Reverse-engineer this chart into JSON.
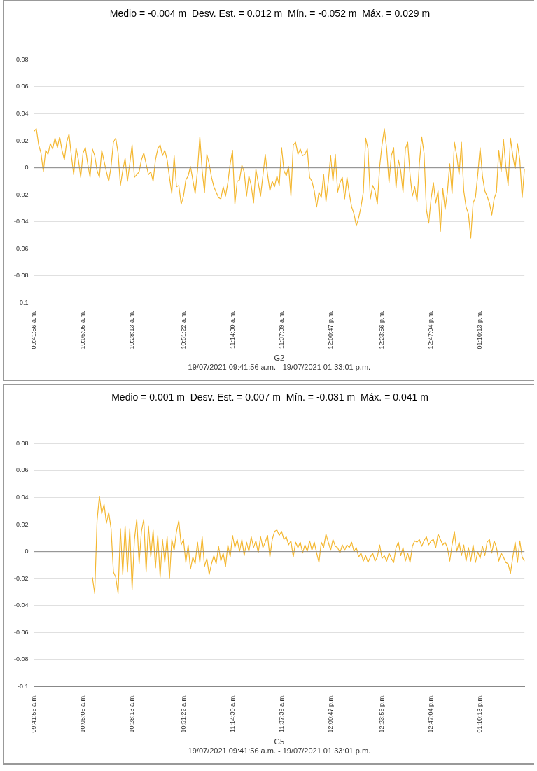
{
  "chart_data": [
    {
      "type": "line",
      "title": "Medio = -0.004 m  Desv. Est. = 0.012 m  Mín. = -0.052 m  Máx. = 0.029 m",
      "xlabel": "G2",
      "annotations": [
        "19/07/2021 09:41:56 a.m. - 19/07/2021 01:33:01 p.m."
      ],
      "categories": [
        "09:41:56 a.m.",
        null,
        null,
        null,
        null,
        null,
        null,
        null,
        null,
        null,
        null,
        null,
        null,
        null,
        null,
        null,
        null,
        null,
        null,
        null,
        null,
        "10:05:05 a.m.",
        null,
        null,
        null,
        null,
        null,
        null,
        null,
        null,
        null,
        null,
        null,
        null,
        null,
        null,
        null,
        null,
        null,
        null,
        null,
        null,
        "10:28:13 a.m.",
        null,
        null,
        null,
        null,
        null,
        null,
        null,
        null,
        null,
        null,
        null,
        null,
        null,
        null,
        null,
        null,
        null,
        null,
        null,
        null,
        null,
        "10:51:22 a.m.",
        null,
        null,
        null,
        null,
        null,
        null,
        null,
        null,
        null,
        null,
        null,
        null,
        null,
        null,
        null,
        null,
        null,
        null,
        null,
        null,
        "11:14:30 a.m.",
        null,
        null,
        null,
        null,
        null,
        null,
        null,
        null,
        null,
        null,
        null,
        null,
        null,
        null,
        null,
        null,
        null,
        null,
        null,
        null,
        "11:37:39 a.m.",
        null,
        null,
        null,
        null,
        null,
        null,
        null,
        null,
        null,
        null,
        null,
        null,
        null,
        null,
        null,
        null,
        null,
        null,
        null,
        null,
        "12:00:47 p.m.",
        null,
        null,
        null,
        null,
        null,
        null,
        null,
        null,
        null,
        null,
        null,
        null,
        null,
        null,
        null,
        null,
        null,
        null,
        null,
        null,
        null,
        "12:23:56 p.m.",
        null,
        null,
        null,
        null,
        null,
        null,
        null,
        null,
        null,
        null,
        null,
        null,
        null,
        null,
        null,
        null,
        null,
        null,
        null,
        null,
        "12:47:04 p.m.",
        null,
        null,
        null,
        null,
        null,
        null,
        null,
        null,
        null,
        null,
        null,
        null,
        null,
        null,
        null,
        null,
        null,
        null,
        null,
        null,
        "01:10:13 p.m.",
        null,
        null,
        null,
        null,
        null,
        null,
        null,
        null,
        null,
        null,
        null,
        null,
        null,
        null,
        null,
        null,
        null,
        null,
        null
      ],
      "series": [
        {
          "color": "#f4b730",
          "values": [
            0.027,
            0.029,
            0.017,
            0.011,
            -0.003,
            0.013,
            0.01,
            0.018,
            0.014,
            0.022,
            0.015,
            0.023,
            0.013,
            0.006,
            0.019,
            0.025,
            0.009,
            -0.005,
            0.015,
            0.006,
            -0.007,
            0.011,
            0.015,
            0.003,
            -0.007,
            0.014,
            0.009,
            -0.002,
            -0.007,
            0.013,
            0.005,
            -0.003,
            -0.01,
            0.001,
            0.019,
            0.022,
            0.011,
            -0.013,
            -0.002,
            0.007,
            -0.01,
            0.003,
            0.017,
            -0.007,
            -0.005,
            -0.003,
            0.006,
            0.011,
            0.003,
            -0.005,
            -0.003,
            -0.01,
            0.006,
            0.014,
            0.017,
            0.009,
            0.013,
            0.006,
            -0.007,
            -0.019,
            0.009,
            -0.014,
            -0.013,
            -0.027,
            -0.021,
            -0.009,
            -0.006,
            0.001,
            -0.009,
            -0.019,
            -0.002,
            0.023,
            -0.002,
            -0.018,
            0.01,
            0.003,
            -0.007,
            -0.014,
            -0.018,
            -0.022,
            -0.023,
            -0.014,
            -0.021,
            -0.011,
            0.003,
            0.013,
            -0.027,
            -0.01,
            -0.009,
            0.002,
            -0.003,
            -0.021,
            -0.006,
            -0.013,
            -0.026,
            -0.001,
            -0.011,
            -0.021,
            -0.006,
            0.01,
            -0.005,
            -0.017,
            -0.01,
            -0.014,
            -0.006,
            -0.013,
            0.015,
            -0.002,
            -0.006,
            0.001,
            -0.021,
            0.017,
            0.019,
            0.01,
            0.014,
            0.009,
            0.01,
            0.014,
            -0.007,
            -0.01,
            -0.017,
            -0.029,
            -0.018,
            -0.022,
            -0.005,
            -0.025,
            -0.01,
            0.009,
            -0.01,
            0.01,
            -0.018,
            -0.011,
            -0.007,
            -0.023,
            -0.007,
            -0.019,
            -0.029,
            -0.034,
            -0.043,
            -0.037,
            -0.029,
            -0.018,
            0.022,
            0.014,
            -0.023,
            -0.013,
            -0.017,
            -0.027,
            0.001,
            0.017,
            0.029,
            0.014,
            -0.011,
            0.009,
            0.015,
            -0.015,
            0.006,
            -0.002,
            -0.018,
            0.014,
            0.019,
            -0.005,
            -0.021,
            -0.014,
            -0.025,
            0.003,
            0.023,
            0.011,
            -0.031,
            -0.041,
            -0.023,
            -0.011,
            -0.026,
            -0.017,
            -0.047,
            -0.015,
            -0.031,
            -0.018,
            0.003,
            -0.019,
            0.019,
            0.009,
            -0.005,
            0.019,
            -0.017,
            -0.029,
            -0.034,
            -0.052,
            -0.026,
            -0.022,
            -0.005,
            0.015,
            -0.006,
            -0.017,
            -0.021,
            -0.026,
            -0.035,
            -0.023,
            -0.018,
            0.013,
            -0.003,
            0.021,
            0.001,
            -0.013,
            0.022,
            0.009,
            -0.001,
            0.018,
            0.006,
            -0.022,
            -0.001
          ]
        }
      ],
      "ylim": [
        -0.1,
        0.1
      ],
      "yticks": [
        -0.1,
        -0.08,
        -0.06,
        -0.04,
        -0.02,
        0,
        0.02,
        0.04,
        0.06,
        0.08
      ],
      "grid": "y",
      "ref_lines": [
        {
          "axis": "y",
          "value": 0,
          "color": "#888888"
        }
      ]
    },
    {
      "type": "line",
      "title": "Medio = 0.001 m  Desv. Est. = 0.007 m  Mín. = -0.031 m  Máx. = 0.041 m",
      "xlabel": "G5",
      "annotations": [
        "19/07/2021 09:41:56 a.m. - 19/07/2021 01:33:01 p.m."
      ],
      "categories": [
        "09:41:56 a.m.",
        null,
        null,
        null,
        null,
        null,
        null,
        null,
        null,
        null,
        null,
        null,
        null,
        null,
        null,
        null,
        null,
        null,
        null,
        null,
        null,
        "10:05:05 a.m.",
        null,
        null,
        null,
        null,
        null,
        null,
        null,
        null,
        null,
        null,
        null,
        null,
        null,
        null,
        null,
        null,
        null,
        null,
        null,
        null,
        "10:28:13 a.m.",
        null,
        null,
        null,
        null,
        null,
        null,
        null,
        null,
        null,
        null,
        null,
        null,
        null,
        null,
        null,
        null,
        null,
        null,
        null,
        null,
        null,
        "10:51:22 a.m.",
        null,
        null,
        null,
        null,
        null,
        null,
        null,
        null,
        null,
        null,
        null,
        null,
        null,
        null,
        null,
        null,
        null,
        null,
        null,
        null,
        "11:14:30 a.m.",
        null,
        null,
        null,
        null,
        null,
        null,
        null,
        null,
        null,
        null,
        null,
        null,
        null,
        null,
        null,
        null,
        null,
        null,
        null,
        null,
        "11:37:39 a.m.",
        null,
        null,
        null,
        null,
        null,
        null,
        null,
        null,
        null,
        null,
        null,
        null,
        null,
        null,
        null,
        null,
        null,
        null,
        null,
        null,
        "12:00:47 p.m.",
        null,
        null,
        null,
        null,
        null,
        null,
        null,
        null,
        null,
        null,
        null,
        null,
        null,
        null,
        null,
        null,
        null,
        null,
        null,
        null,
        null,
        "12:23:56 p.m.",
        null,
        null,
        null,
        null,
        null,
        null,
        null,
        null,
        null,
        null,
        null,
        null,
        null,
        null,
        null,
        null,
        null,
        null,
        null,
        null,
        "12:47:04 p.m.",
        null,
        null,
        null,
        null,
        null,
        null,
        null,
        null,
        null,
        null,
        null,
        null,
        null,
        null,
        null,
        null,
        null,
        null,
        null,
        null,
        "01:10:13 p.m.",
        null,
        null,
        null,
        null,
        null,
        null,
        null,
        null,
        null,
        null,
        null,
        null,
        null,
        null,
        null,
        null,
        null,
        null,
        null
      ],
      "series": [
        {
          "color": "#f4b730",
          "values": [
            null,
            null,
            null,
            null,
            null,
            null,
            null,
            null,
            null,
            null,
            null,
            null,
            null,
            null,
            null,
            null,
            null,
            null,
            null,
            null,
            null,
            null,
            null,
            null,
            null,
            -0.019,
            -0.031,
            0.023,
            0.041,
            0.028,
            0.035,
            0.021,
            0.029,
            0.017,
            -0.015,
            -0.019,
            -0.031,
            0.017,
            -0.017,
            0.019,
            -0.015,
            0.017,
            -0.028,
            0.009,
            0.024,
            -0.009,
            0.015,
            0.024,
            -0.015,
            0.019,
            -0.004,
            0.016,
            -0.012,
            0.012,
            -0.019,
            0.009,
            -0.008,
            0.011,
            -0.02,
            0.009,
            0.001,
            0.015,
            0.023,
            0.005,
            0.009,
            -0.008,
            0.005,
            -0.013,
            -0.004,
            -0.009,
            0.007,
            -0.008,
            0.011,
            -0.011,
            -0.005,
            -0.017,
            -0.009,
            -0.003,
            -0.009,
            0.004,
            -0.007,
            -0.001,
            -0.011,
            0.005,
            -0.004,
            0.012,
            0.003,
            0.009,
            0.0,
            0.009,
            -0.003,
            0.007,
            0.0,
            0.011,
            0.003,
            0.008,
            -0.001,
            0.011,
            0.003,
            0.007,
            0.012,
            -0.004,
            0.009,
            0.015,
            0.016,
            0.012,
            0.015,
            0.009,
            0.011,
            0.005,
            0.008,
            -0.004,
            0.007,
            0.003,
            0.007,
            -0.001,
            0.005,
            0.0,
            0.008,
            0.001,
            0.007,
            -0.001,
            -0.008,
            0.007,
            0.003,
            0.013,
            0.007,
            0.001,
            0.009,
            0.004,
            0.003,
            -0.001,
            0.005,
            0.001,
            0.005,
            0.003,
            0.007,
            0.0,
            0.003,
            -0.004,
            -0.001,
            -0.007,
            -0.003,
            -0.008,
            -0.004,
            -0.001,
            -0.007,
            -0.004,
            0.005,
            -0.005,
            -0.003,
            -0.007,
            -0.001,
            -0.005,
            -0.008,
            0.003,
            0.007,
            -0.003,
            0.003,
            -0.007,
            -0.001,
            -0.008,
            0.004,
            0.008,
            0.007,
            0.009,
            0.004,
            0.008,
            0.011,
            0.005,
            0.008,
            0.009,
            0.003,
            0.013,
            0.009,
            0.005,
            0.007,
            0.003,
            -0.007,
            0.005,
            0.015,
            0.0,
            0.007,
            -0.003,
            0.005,
            -0.007,
            0.003,
            -0.007,
            0.005,
            -0.008,
            0.0,
            -0.005,
            0.004,
            -0.003,
            0.007,
            0.009,
            -0.001,
            0.008,
            0.003,
            -0.007,
            -0.001,
            -0.004,
            -0.008,
            -0.009,
            -0.016,
            -0.004,
            0.007,
            -0.008,
            0.008,
            -0.004,
            -0.007
          ]
        }
      ],
      "ylim": [
        -0.1,
        0.1
      ],
      "yticks": [
        -0.1,
        -0.08,
        -0.06,
        -0.04,
        -0.02,
        0,
        0.02,
        0.04,
        0.06,
        0.08
      ],
      "grid": "y",
      "ref_lines": [
        {
          "axis": "y",
          "value": 0,
          "color": "#888888"
        }
      ]
    }
  ]
}
